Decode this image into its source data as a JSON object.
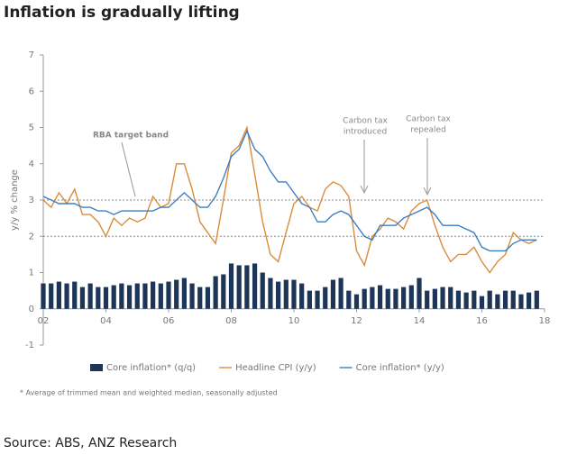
{
  "chart_data": {
    "type": "combo",
    "title": "Inflation is gradually lifting",
    "y_label": "y/y % change",
    "annotations": [
      [
        "RBA target band"
      ],
      [
        "Carbon tax",
        "introduced"
      ],
      [
        "Carbon tax",
        "repealed"
      ]
    ],
    "target_band": [
      2,
      3
    ],
    "footnote": "* Average of trimmed mean and weighted median, seasonally adjusted",
    "source": "Source: ABS, ANZ Research",
    "xlim": [
      2002,
      2018
    ],
    "xticks": [
      {
        "value": 2002,
        "label": "02"
      },
      {
        "value": 2004,
        "label": "04"
      },
      {
        "value": 2006,
        "label": "06"
      },
      {
        "value": 2008,
        "label": "08"
      },
      {
        "value": 2010,
        "label": "10"
      },
      {
        "value": 2012,
        "label": "12"
      },
      {
        "value": 2014,
        "label": "14"
      },
      {
        "value": 2016,
        "label": "16"
      },
      {
        "value": 2018,
        "label": "18"
      }
    ],
    "ylim": [
      -1,
      7
    ],
    "yticks": [
      -1,
      0,
      1,
      2,
      3,
      4,
      5,
      6,
      7
    ],
    "x": [
      2002,
      2002.25,
      2002.5,
      2002.75,
      2003,
      2003.25,
      2003.5,
      2003.75,
      2004,
      2004.25,
      2004.5,
      2004.75,
      2005,
      2005.25,
      2005.5,
      2005.75,
      2006,
      2006.25,
      2006.5,
      2006.75,
      2007,
      2007.25,
      2007.5,
      2007.75,
      2008,
      2008.25,
      2008.5,
      2008.75,
      2009,
      2009.25,
      2009.5,
      2009.75,
      2010,
      2010.25,
      2010.5,
      2010.75,
      2011,
      2011.25,
      2011.5,
      2011.75,
      2012,
      2012.25,
      2012.5,
      2012.75,
      2013,
      2013.25,
      2013.5,
      2013.75,
      2014,
      2014.25,
      2014.5,
      2014.75,
      2015,
      2015.25,
      2015.5,
      2015.75,
      2016,
      2016.25,
      2016.5,
      2016.75,
      2017,
      2017.25,
      2017.5,
      2017.75
    ],
    "series": [
      {
        "name": "Core inflation* (q/q)",
        "kind": "bar",
        "color": "#1d3557",
        "values": [
          0.7,
          0.7,
          0.75,
          0.7,
          0.75,
          0.6,
          0.7,
          0.6,
          0.6,
          0.65,
          0.7,
          0.65,
          0.7,
          0.7,
          0.75,
          0.7,
          0.75,
          0.8,
          0.85,
          0.7,
          0.6,
          0.6,
          0.9,
          0.95,
          1.25,
          1.2,
          1.2,
          1.25,
          1.0,
          0.85,
          0.75,
          0.8,
          0.8,
          0.7,
          0.5,
          0.5,
          0.6,
          0.8,
          0.85,
          0.5,
          0.4,
          0.55,
          0.6,
          0.65,
          0.55,
          0.55,
          0.6,
          0.65,
          0.85,
          0.5,
          0.55,
          0.6,
          0.6,
          0.5,
          0.45,
          0.5,
          0.35,
          0.5,
          0.4,
          0.5,
          0.5,
          0.4,
          0.45,
          0.5
        ]
      },
      {
        "name": "Headline CPI (y/y)",
        "kind": "line",
        "color": "#d98c3c",
        "values": [
          3.0,
          2.8,
          3.2,
          2.9,
          3.3,
          2.6,
          2.6,
          2.4,
          2.0,
          2.5,
          2.3,
          2.5,
          2.4,
          2.5,
          3.1,
          2.8,
          2.9,
          4.0,
          4.0,
          3.3,
          2.4,
          2.1,
          1.8,
          3.0,
          4.3,
          4.5,
          5.0,
          3.7,
          2.4,
          1.5,
          1.3,
          2.1,
          2.9,
          3.1,
          2.8,
          2.7,
          3.3,
          3.5,
          3.4,
          3.1,
          1.6,
          1.2,
          2.0,
          2.2,
          2.5,
          2.4,
          2.2,
          2.7,
          2.9,
          3.0,
          2.3,
          1.7,
          1.3,
          1.5,
          1.5,
          1.7,
          1.3,
          1.0,
          1.3,
          1.5,
          2.1,
          1.9,
          1.8,
          1.9
        ]
      },
      {
        "name": "Core inflation* (y/y)",
        "kind": "line",
        "color": "#3d7ec1",
        "values": [
          3.1,
          3.0,
          2.9,
          2.9,
          2.9,
          2.8,
          2.8,
          2.7,
          2.7,
          2.6,
          2.7,
          2.7,
          2.7,
          2.7,
          2.7,
          2.8,
          2.8,
          3.0,
          3.2,
          3.0,
          2.8,
          2.8,
          3.1,
          3.6,
          4.2,
          4.4,
          4.9,
          4.4,
          4.2,
          3.8,
          3.5,
          3.5,
          3.2,
          2.9,
          2.8,
          2.4,
          2.4,
          2.6,
          2.7,
          2.6,
          2.3,
          2.0,
          1.9,
          2.3,
          2.3,
          2.3,
          2.5,
          2.6,
          2.7,
          2.8,
          2.6,
          2.3,
          2.3,
          2.3,
          2.2,
          2.1,
          1.7,
          1.6,
          1.6,
          1.6,
          1.8,
          1.9,
          1.9,
          1.9
        ]
      }
    ]
  }
}
